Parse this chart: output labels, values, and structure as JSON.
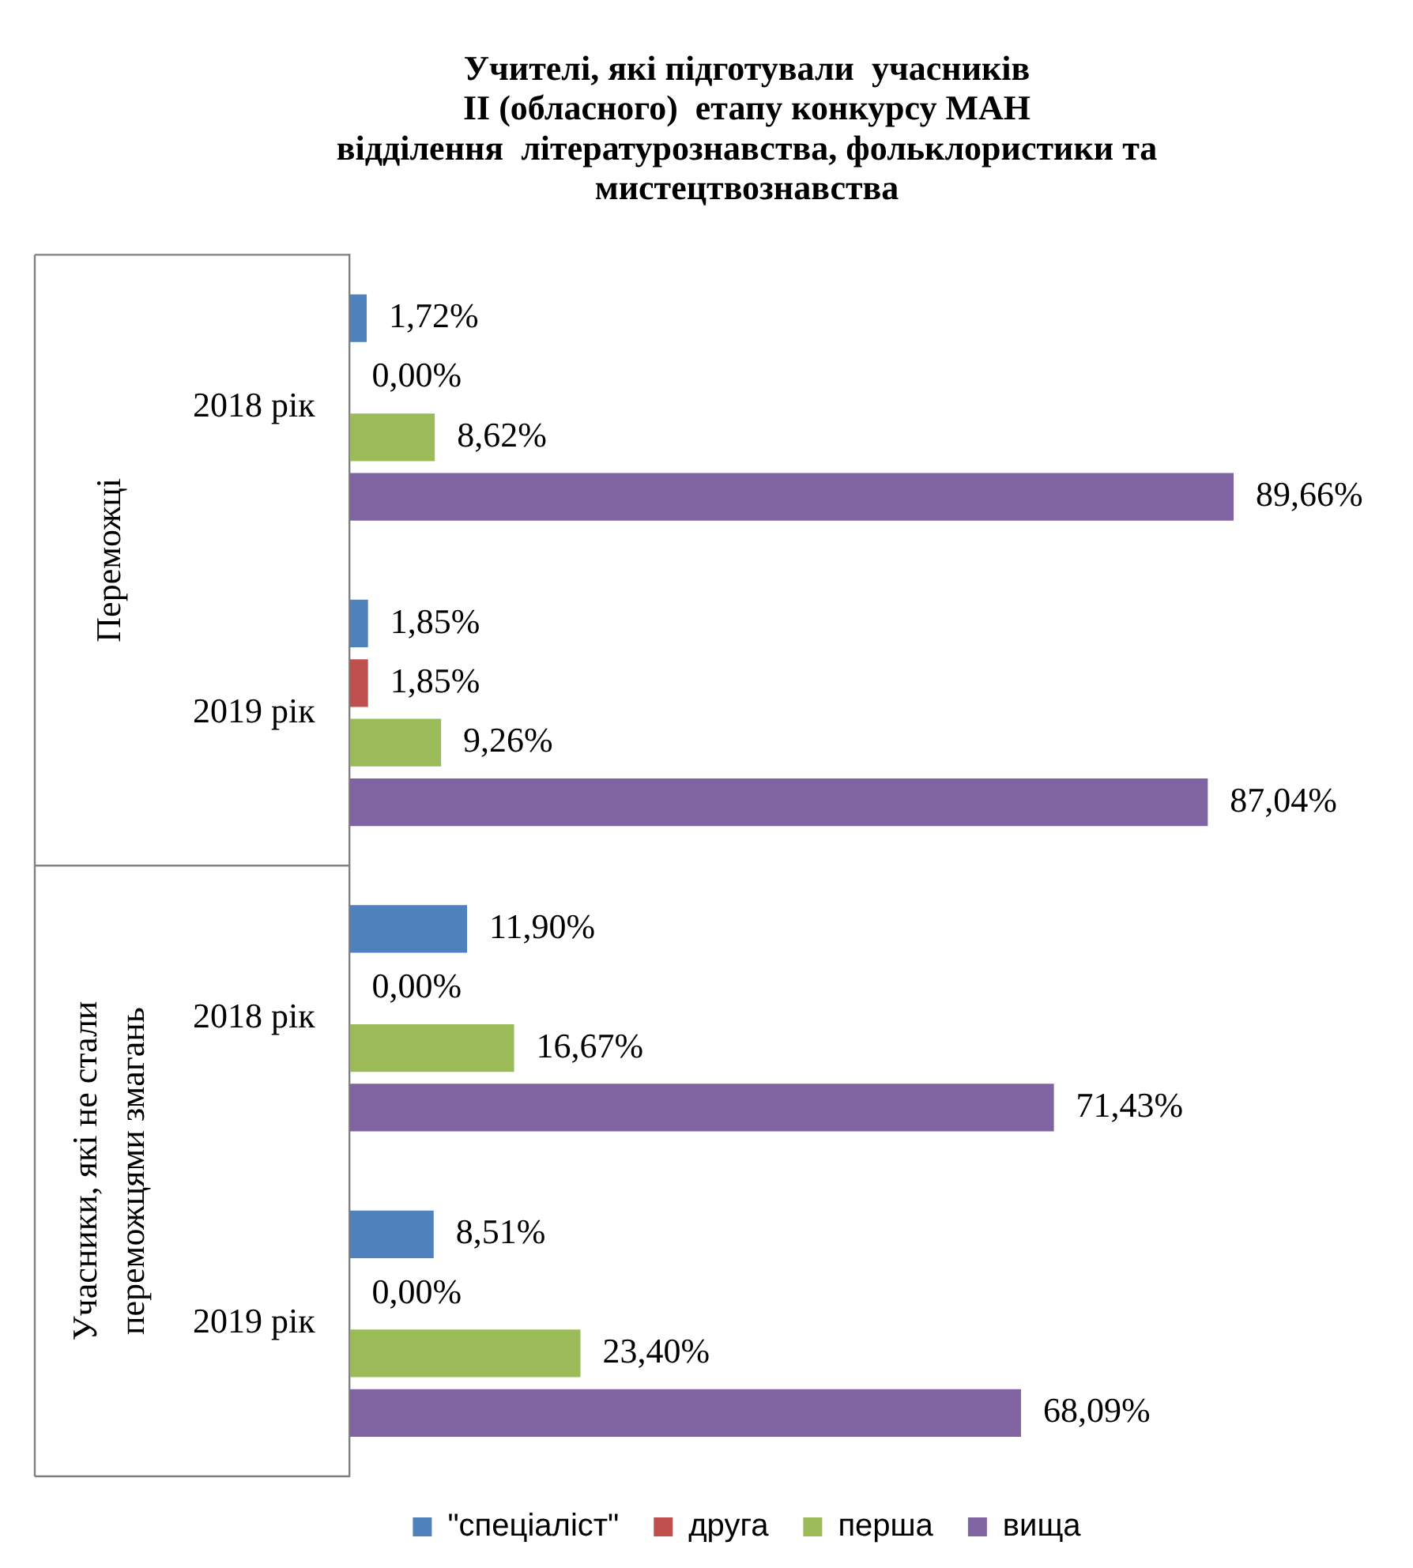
{
  "chart_data": {
    "type": "bar",
    "orientation": "horizontal",
    "title": "Учителі, які підготували  учасників\nІІ (обласного)  етапу конкурсу МАН\nвідділення  літературознавства, фольклористики та\nмистецтвознавства",
    "categories": [
      "2018 рік",
      "2019 рік",
      "2018 рік",
      "2019 рік"
    ],
    "annotations": [
      "Переможці",
      "Учасники, які не стали переможцями змагань"
    ],
    "tick_labels": "y",
    "legend": "bottom",
    "series": [
      {
        "name": "\"спеціаліст\"",
        "color": "#4f81bd",
        "values": [
          1.72,
          1.85,
          11.9,
          8.51
        ],
        "value_labels": [
          "1,72%",
          "1,85%",
          "11,90%",
          "8,51%"
        ]
      },
      {
        "name": "друга",
        "color": "#c0504d",
        "values": [
          0,
          1.85,
          0,
          0
        ],
        "value_labels": [
          "0,00%",
          "1,85%",
          "0,00%",
          "0,00%"
        ]
      },
      {
        "name": "перша",
        "color": "#9bbb59",
        "values": [
          8.62,
          9.26,
          16.67,
          23.4
        ],
        "value_labels": [
          "8,62%",
          "9,26%",
          "16,67%",
          "23,40%"
        ]
      },
      {
        "name": "вища",
        "color": "#8064a2",
        "values": [
          89.66,
          87.04,
          71.43,
          68.09
        ],
        "value_labels": [
          "89,66%",
          "87,04%",
          "71,43%",
          "68,09%"
        ]
      }
    ]
  }
}
